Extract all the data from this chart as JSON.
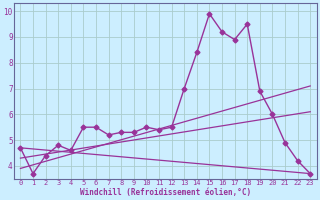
{
  "xlabel": "Windchill (Refroidissement éolien,°C)",
  "background_color": "#cceeff",
  "grid_color": "#aacccc",
  "line_color": "#993399",
  "spine_color": "#666699",
  "xlim": [
    -0.5,
    23.5
  ],
  "ylim": [
    3.5,
    10.3
  ],
  "x_ticks": [
    0,
    1,
    2,
    3,
    4,
    5,
    6,
    7,
    8,
    9,
    10,
    11,
    12,
    13,
    14,
    15,
    16,
    17,
    18,
    19,
    20,
    21,
    22,
    23
  ],
  "y_ticks": [
    4,
    5,
    6,
    7,
    8,
    9,
    10
  ],
  "main_line": {
    "x": [
      0,
      1,
      2,
      3,
      4,
      5,
      6,
      7,
      8,
      9,
      10,
      11,
      12,
      13,
      14,
      15,
      16,
      17,
      18,
      19,
      20,
      21,
      22,
      23
    ],
    "y": [
      4.7,
      3.7,
      4.4,
      4.8,
      4.6,
      5.5,
      5.5,
      5.2,
      5.3,
      5.3,
      5.5,
      5.4,
      5.5,
      7.0,
      8.4,
      9.9,
      9.2,
      8.9,
      9.5,
      6.9,
      6.0,
      4.9,
      4.2,
      3.7
    ]
  },
  "aux_lines": [
    {
      "x": [
        0,
        23
      ],
      "y": [
        3.9,
        7.1
      ]
    },
    {
      "x": [
        0,
        23
      ],
      "y": [
        4.3,
        6.1
      ]
    },
    {
      "x": [
        0,
        23
      ],
      "y": [
        4.7,
        3.7
      ]
    }
  ]
}
